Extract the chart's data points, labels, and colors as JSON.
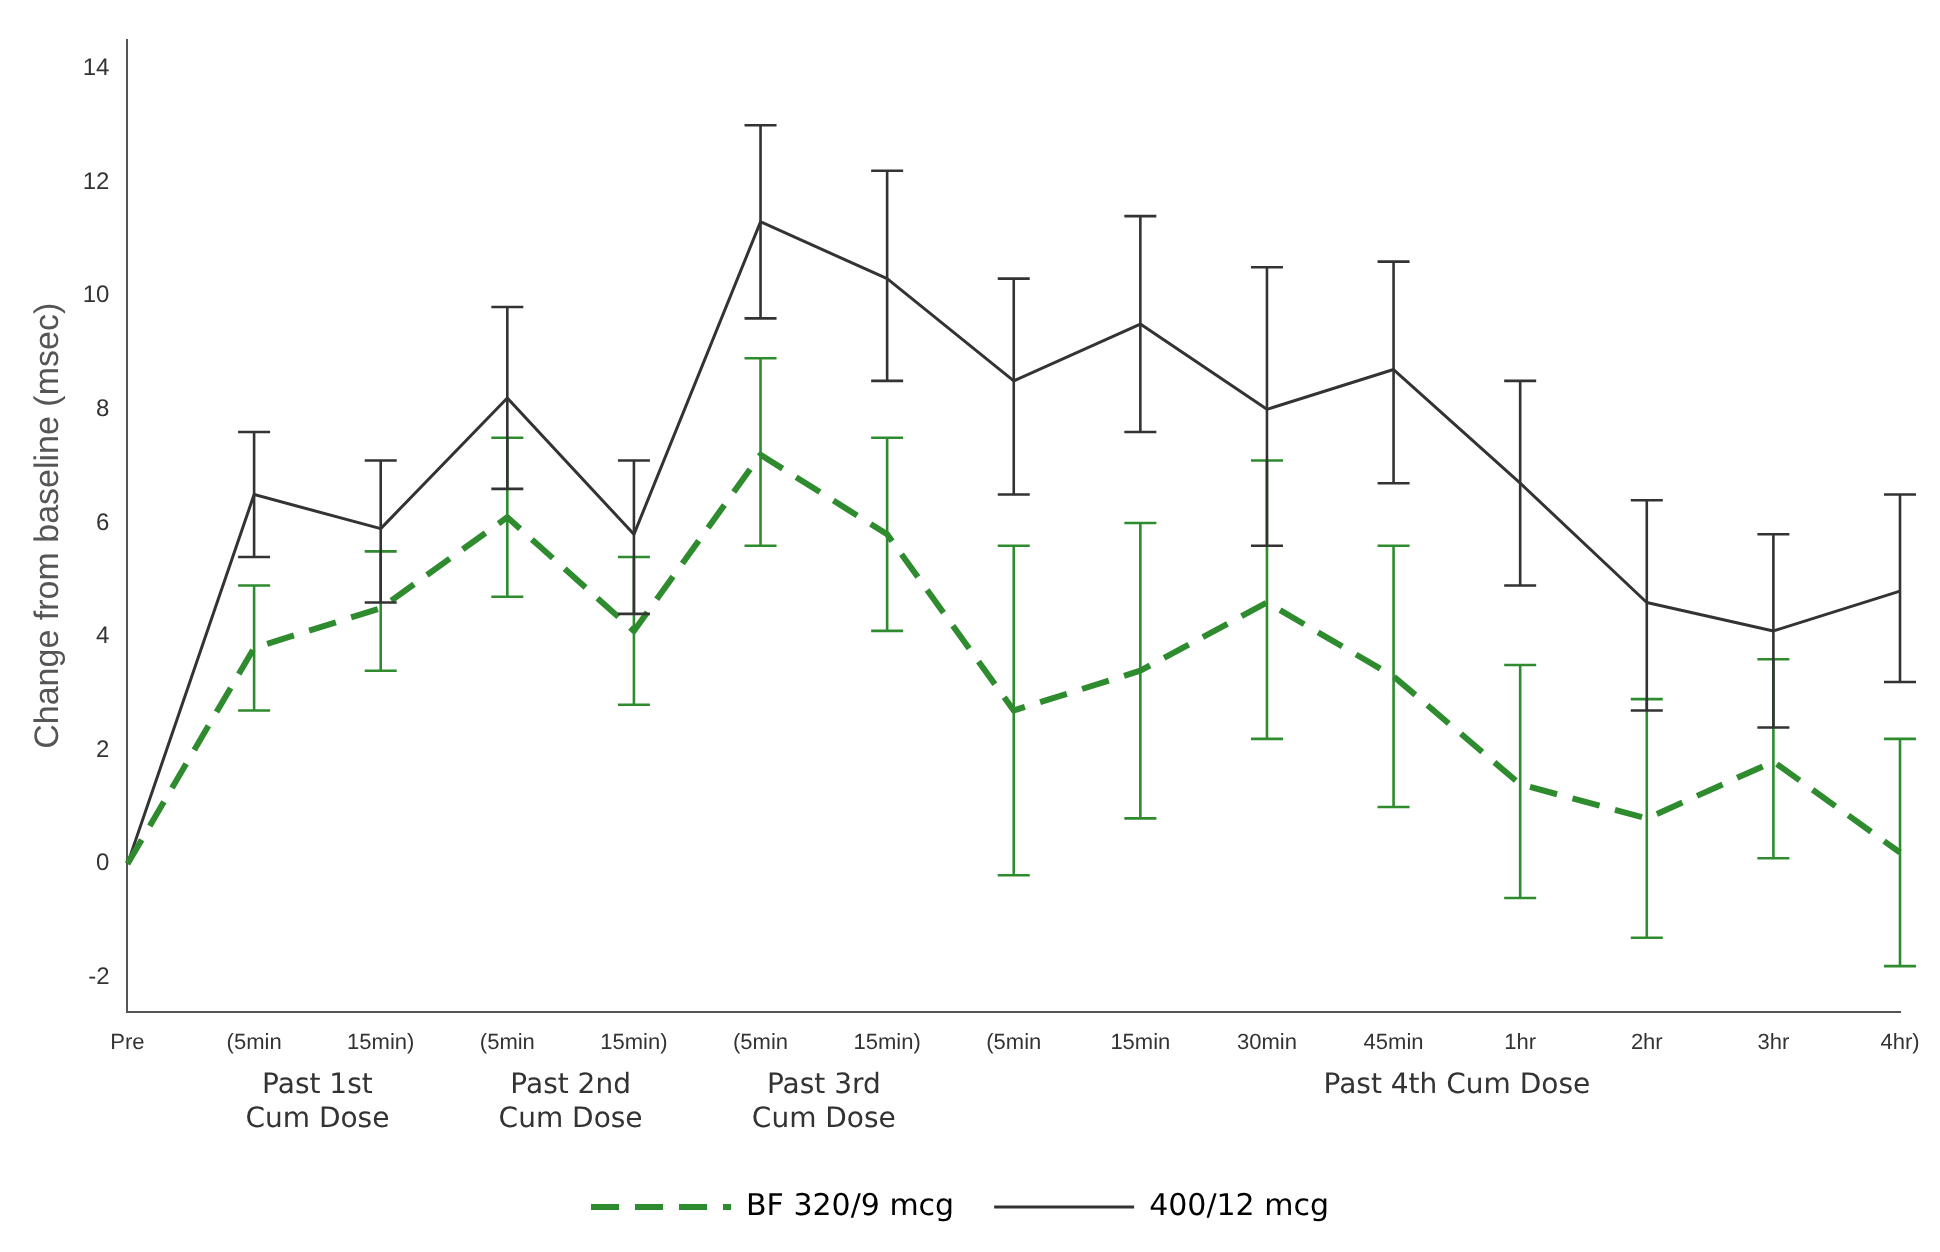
{
  "chart_data": {
    "type": "line",
    "ylabel": "Change from baseline (msec)",
    "categories": [
      "Pre",
      "(5min",
      "15min)",
      "(5min",
      "15min)",
      "(5min",
      "15min)",
      "(5min",
      "15min",
      "30min",
      "45min",
      "1hr",
      "2hr",
      "3hr",
      "4hr)"
    ],
    "annotations": [
      "Past 1st\nCum Dose",
      "Past 2nd\nCum Dose",
      "Past 3rd\nCum Dose",
      "Past 4th Cum Dose"
    ],
    "ylim": [
      -2.6,
      14.5
    ],
    "yticks": [
      -2,
      0,
      2,
      4,
      6,
      8,
      10,
      12,
      14
    ],
    "grid": false,
    "legend": "bottom",
    "marker": "none",
    "series": [
      {
        "name": "BF 320/9 mcg",
        "color": "#2e8b2e",
        "line_style": "dashed",
        "values": [
          0,
          3.8,
          4.5,
          6.1,
          4.1,
          7.2,
          5.8,
          2.7,
          3.4,
          4.6,
          3.3,
          1.4,
          0.8,
          1.8,
          0.2
        ],
        "errors": [
          null,
          [
            2.7,
            4.9
          ],
          [
            3.4,
            5.5
          ],
          [
            4.7,
            7.5
          ],
          [
            2.8,
            5.4
          ],
          [
            5.6,
            8.9
          ],
          [
            4.1,
            7.5
          ],
          [
            -0.2,
            5.6
          ],
          [
            0.8,
            6.0
          ],
          [
            2.2,
            7.1
          ],
          [
            1.0,
            5.6
          ],
          [
            -0.6,
            3.5
          ],
          [
            -1.3,
            2.9
          ],
          [
            0.1,
            3.6
          ],
          [
            -1.8,
            2.2
          ]
        ]
      },
      {
        "name": "400/12 mcg",
        "color": "#333333",
        "line_style": "solid",
        "values": [
          0,
          6.5,
          5.9,
          8.2,
          5.8,
          11.3,
          10.3,
          8.5,
          9.5,
          8.0,
          8.7,
          6.7,
          4.6,
          4.1,
          4.8
        ],
        "errors": [
          null,
          [
            5.4,
            7.6
          ],
          [
            4.6,
            7.1
          ],
          [
            6.6,
            9.8
          ],
          [
            4.4,
            7.1
          ],
          [
            9.6,
            13.0
          ],
          [
            8.5,
            12.2
          ],
          [
            6.5,
            10.3
          ],
          [
            7.6,
            11.4
          ],
          [
            5.6,
            10.5
          ],
          [
            6.7,
            10.6
          ],
          [
            4.9,
            8.5
          ],
          [
            2.7,
            6.4
          ],
          [
            2.4,
            5.8
          ],
          [
            3.2,
            6.5
          ]
        ]
      }
    ]
  }
}
